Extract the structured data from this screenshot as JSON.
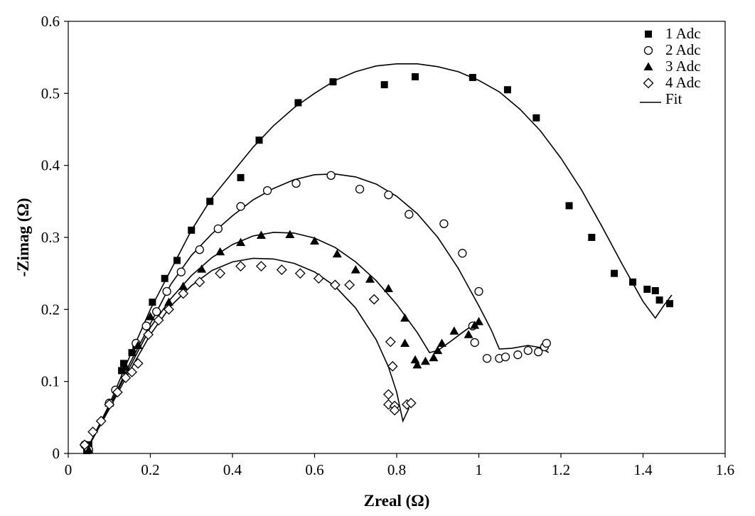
{
  "chart_data": {
    "type": "scatter",
    "xlabel": "Zreal (Ω)",
    "ylabel": "-Zimag (Ω)",
    "xlim": [
      0,
      1.6
    ],
    "ylim": [
      0,
      0.6
    ],
    "x_ticks": [
      "0",
      "0.2",
      "0.4",
      "0.6",
      "0.8",
      "1",
      "1.2",
      "1.4",
      "1.6"
    ],
    "y_ticks": [
      "0",
      "0.1",
      "0.2",
      "0.3",
      "0.4",
      "0.5",
      "0.6"
    ],
    "grid": false,
    "legend_position": "top-right",
    "series": [
      {
        "name": "1 Adc",
        "marker": "filled-square",
        "points": [
          [
            0.045,
            0.004
          ],
          [
            0.05,
            0.012
          ],
          [
            0.13,
            0.115
          ],
          [
            0.135,
            0.125
          ],
          [
            0.155,
            0.14
          ],
          [
            0.165,
            0.15
          ],
          [
            0.205,
            0.21
          ],
          [
            0.235,
            0.243
          ],
          [
            0.265,
            0.268
          ],
          [
            0.3,
            0.31
          ],
          [
            0.345,
            0.35
          ],
          [
            0.42,
            0.383
          ],
          [
            0.465,
            0.435
          ],
          [
            0.56,
            0.487
          ],
          [
            0.645,
            0.516
          ],
          [
            0.77,
            0.512
          ],
          [
            0.845,
            0.523
          ],
          [
            0.985,
            0.522
          ],
          [
            1.07,
            0.505
          ],
          [
            1.14,
            0.466
          ],
          [
            1.22,
            0.344
          ],
          [
            1.275,
            0.3
          ],
          [
            1.33,
            0.25
          ],
          [
            1.375,
            0.238
          ],
          [
            1.41,
            0.228
          ],
          [
            1.43,
            0.226
          ],
          [
            1.44,
            0.213
          ],
          [
            1.465,
            0.208
          ]
        ]
      },
      {
        "name": "2 Adc",
        "marker": "open-circle",
        "points": [
          [
            0.04,
            0.012
          ],
          [
            0.05,
            0.005
          ],
          [
            0.1,
            0.07
          ],
          [
            0.115,
            0.088
          ],
          [
            0.165,
            0.153
          ],
          [
            0.19,
            0.177
          ],
          [
            0.215,
            0.197
          ],
          [
            0.24,
            0.225
          ],
          [
            0.275,
            0.252
          ],
          [
            0.32,
            0.283
          ],
          [
            0.365,
            0.312
          ],
          [
            0.42,
            0.343
          ],
          [
            0.485,
            0.365
          ],
          [
            0.555,
            0.375
          ],
          [
            0.64,
            0.386
          ],
          [
            0.71,
            0.367
          ],
          [
            0.78,
            0.359
          ],
          [
            0.83,
            0.332
          ],
          [
            0.915,
            0.319
          ],
          [
            0.96,
            0.278
          ],
          [
            0.985,
            0.177
          ],
          [
            0.99,
            0.154
          ],
          [
            1.0,
            0.225
          ],
          [
            1.02,
            0.132
          ],
          [
            1.05,
            0.132
          ],
          [
            1.065,
            0.134
          ],
          [
            1.095,
            0.137
          ],
          [
            1.12,
            0.143
          ],
          [
            1.145,
            0.141
          ],
          [
            1.16,
            0.148
          ],
          [
            1.165,
            0.153
          ]
        ]
      },
      {
        "name": "3 Adc",
        "marker": "filled-triangle",
        "points": [
          [
            0.05,
            0.005
          ],
          [
            0.1,
            0.07
          ],
          [
            0.14,
            0.12
          ],
          [
            0.17,
            0.15
          ],
          [
            0.2,
            0.19
          ],
          [
            0.245,
            0.21
          ],
          [
            0.28,
            0.232
          ],
          [
            0.325,
            0.256
          ],
          [
            0.37,
            0.28
          ],
          [
            0.42,
            0.293
          ],
          [
            0.47,
            0.303
          ],
          [
            0.54,
            0.304
          ],
          [
            0.6,
            0.295
          ],
          [
            0.655,
            0.277
          ],
          [
            0.7,
            0.255
          ],
          [
            0.735,
            0.242
          ],
          [
            0.78,
            0.229
          ],
          [
            0.82,
            0.188
          ],
          [
            0.82,
            0.153
          ],
          [
            0.845,
            0.13
          ],
          [
            0.85,
            0.123
          ],
          [
            0.87,
            0.128
          ],
          [
            0.89,
            0.133
          ],
          [
            0.9,
            0.143
          ],
          [
            0.91,
            0.153
          ],
          [
            0.94,
            0.17
          ],
          [
            0.975,
            0.165
          ],
          [
            0.99,
            0.178
          ],
          [
            1.0,
            0.183
          ]
        ]
      },
      {
        "name": "4 Adc",
        "marker": "open-diamond",
        "points": [
          [
            0.04,
            0.012
          ],
          [
            0.06,
            0.03
          ],
          [
            0.08,
            0.045
          ],
          [
            0.1,
            0.068
          ],
          [
            0.12,
            0.085
          ],
          [
            0.14,
            0.105
          ],
          [
            0.155,
            0.113
          ],
          [
            0.17,
            0.125
          ],
          [
            0.195,
            0.165
          ],
          [
            0.22,
            0.185
          ],
          [
            0.245,
            0.2
          ],
          [
            0.28,
            0.222
          ],
          [
            0.32,
            0.238
          ],
          [
            0.37,
            0.25
          ],
          [
            0.42,
            0.26
          ],
          [
            0.47,
            0.26
          ],
          [
            0.52,
            0.255
          ],
          [
            0.565,
            0.25
          ],
          [
            0.61,
            0.243
          ],
          [
            0.65,
            0.234
          ],
          [
            0.685,
            0.234
          ],
          [
            0.745,
            0.214
          ],
          [
            0.785,
            0.155
          ],
          [
            0.79,
            0.121
          ],
          [
            0.78,
            0.082
          ],
          [
            0.78,
            0.068
          ],
          [
            0.795,
            0.066
          ],
          [
            0.795,
            0.06
          ],
          [
            0.825,
            0.068
          ],
          [
            0.835,
            0.07
          ]
        ]
      },
      {
        "name": "Fit",
        "marker": "line",
        "curves": [
          [
            [
              0.045,
              0.005
            ],
            [
              0.1,
              0.068
            ],
            [
              0.15,
              0.135
            ],
            [
              0.2,
              0.2
            ],
            [
              0.25,
              0.255
            ],
            [
              0.3,
              0.31
            ],
            [
              0.35,
              0.355
            ],
            [
              0.4,
              0.39
            ],
            [
              0.45,
              0.425
            ],
            [
              0.5,
              0.455
            ],
            [
              0.55,
              0.48
            ],
            [
              0.6,
              0.5
            ],
            [
              0.65,
              0.518
            ],
            [
              0.7,
              0.53
            ],
            [
              0.75,
              0.538
            ],
            [
              0.8,
              0.541
            ],
            [
              0.85,
              0.541
            ],
            [
              0.9,
              0.537
            ],
            [
              0.95,
              0.53
            ],
            [
              1.0,
              0.518
            ],
            [
              1.05,
              0.502
            ],
            [
              1.1,
              0.478
            ],
            [
              1.15,
              0.448
            ],
            [
              1.2,
              0.41
            ],
            [
              1.25,
              0.366
            ],
            [
              1.3,
              0.315
            ],
            [
              1.35,
              0.262
            ],
            [
              1.4,
              0.211
            ],
            [
              1.43,
              0.188
            ],
            [
              1.45,
              0.205
            ],
            [
              1.47,
              0.22
            ]
          ],
          [
            [
              0.045,
              0.005
            ],
            [
              0.1,
              0.065
            ],
            [
              0.15,
              0.125
            ],
            [
              0.2,
              0.18
            ],
            [
              0.25,
              0.235
            ],
            [
              0.3,
              0.275
            ],
            [
              0.35,
              0.305
            ],
            [
              0.4,
              0.33
            ],
            [
              0.45,
              0.352
            ],
            [
              0.5,
              0.368
            ],
            [
              0.55,
              0.38
            ],
            [
              0.6,
              0.387
            ],
            [
              0.65,
              0.388
            ],
            [
              0.7,
              0.384
            ],
            [
              0.75,
              0.374
            ],
            [
              0.8,
              0.357
            ],
            [
              0.85,
              0.333
            ],
            [
              0.9,
              0.3
            ],
            [
              0.95,
              0.257
            ],
            [
              1.0,
              0.205
            ],
            [
              1.03,
              0.172
            ],
            [
              1.05,
              0.145
            ],
            [
              1.08,
              0.146
            ],
            [
              1.12,
              0.15
            ],
            [
              1.15,
              0.147
            ],
            [
              1.17,
              0.14
            ]
          ],
          [
            [
              0.045,
              0.005
            ],
            [
              0.1,
              0.065
            ],
            [
              0.15,
              0.12
            ],
            [
              0.2,
              0.175
            ],
            [
              0.25,
              0.215
            ],
            [
              0.3,
              0.247
            ],
            [
              0.35,
              0.272
            ],
            [
              0.4,
              0.29
            ],
            [
              0.45,
              0.302
            ],
            [
              0.5,
              0.307
            ],
            [
              0.55,
              0.306
            ],
            [
              0.6,
              0.299
            ],
            [
              0.65,
              0.286
            ],
            [
              0.7,
              0.266
            ],
            [
              0.75,
              0.24
            ],
            [
              0.8,
              0.207
            ],
            [
              0.85,
              0.168
            ],
            [
              0.88,
              0.14
            ],
            [
              0.9,
              0.143
            ],
            [
              0.93,
              0.155
            ],
            [
              0.96,
              0.168
            ],
            [
              0.985,
              0.178
            ],
            [
              1.0,
              0.183
            ]
          ],
          [
            [
              0.045,
              0.005
            ],
            [
              0.1,
              0.062
            ],
            [
              0.15,
              0.115
            ],
            [
              0.2,
              0.165
            ],
            [
              0.25,
              0.205
            ],
            [
              0.3,
              0.233
            ],
            [
              0.35,
              0.254
            ],
            [
              0.4,
              0.266
            ],
            [
              0.45,
              0.271
            ],
            [
              0.5,
              0.27
            ],
            [
              0.55,
              0.264
            ],
            [
              0.6,
              0.252
            ],
            [
              0.65,
              0.232
            ],
            [
              0.7,
              0.202
            ],
            [
              0.75,
              0.158
            ],
            [
              0.78,
              0.12
            ],
            [
              0.8,
              0.085
            ],
            [
              0.815,
              0.045
            ],
            [
              0.83,
              0.063
            ]
          ]
        ]
      }
    ]
  }
}
